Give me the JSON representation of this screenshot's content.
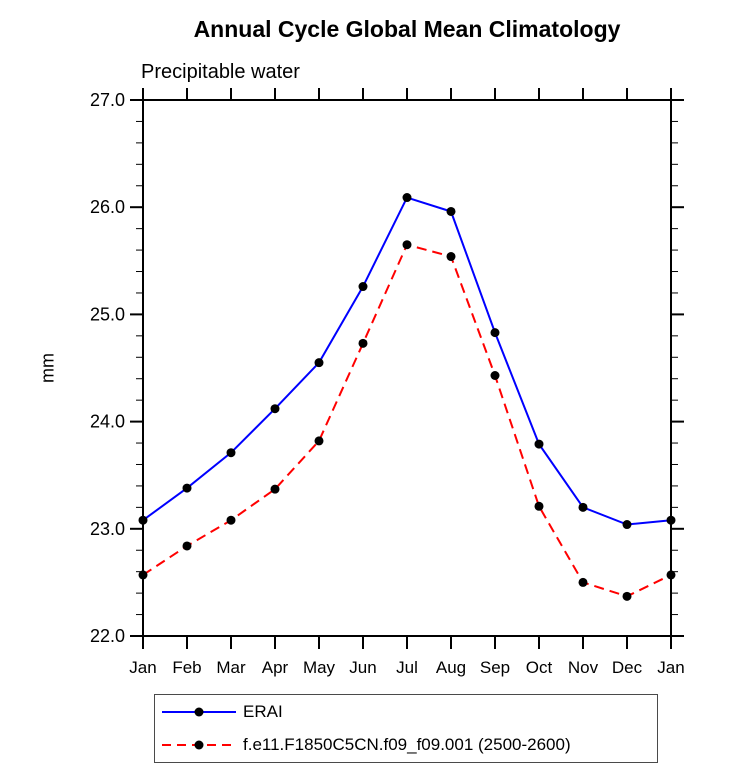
{
  "header": {
    "title": "Annual Cycle Global Mean Climatology",
    "subtitle": "Precipitable water"
  },
  "chart_data": {
    "type": "line",
    "categories": [
      "Jan",
      "Feb",
      "Mar",
      "Apr",
      "May",
      "Jun",
      "Jul",
      "Aug",
      "Sep",
      "Oct",
      "Nov",
      "Dec",
      "Jan"
    ],
    "series": [
      {
        "name": "ERAI",
        "color": "#0000ff",
        "style": "solid",
        "marker": "filled-circle",
        "marker_color": "#000000",
        "values": [
          23.08,
          23.38,
          23.71,
          24.12,
          24.55,
          25.26,
          26.09,
          25.96,
          24.83,
          23.79,
          23.2,
          23.04,
          23.08
        ]
      },
      {
        "name": "f.e11.F1850C5CN.f09_f09.001 (2500-2600)",
        "color": "#ff0000",
        "style": "dashed",
        "marker": "filled-circle",
        "marker_color": "#000000",
        "values": [
          22.57,
          22.84,
          23.08,
          23.37,
          23.82,
          24.73,
          25.65,
          25.54,
          24.43,
          23.21,
          22.5,
          22.37,
          22.57
        ]
      }
    ],
    "xlabel": "",
    "ylabel": "mm",
    "ylim": [
      22.0,
      27.0
    ],
    "yticks": [
      {
        "value": 22.0,
        "label": "22.0"
      },
      {
        "value": 23.0,
        "label": "23.0"
      },
      {
        "value": 24.0,
        "label": "24.0"
      },
      {
        "value": 25.0,
        "label": "25.0"
      },
      {
        "value": 26.0,
        "label": "26.0"
      },
      {
        "value": 27.0,
        "label": "27.0"
      }
    ],
    "y_minor_step": 0.2,
    "grid": false,
    "legend_position": "bottom",
    "axis_color": "#000000",
    "background_color": "#ffffff"
  }
}
